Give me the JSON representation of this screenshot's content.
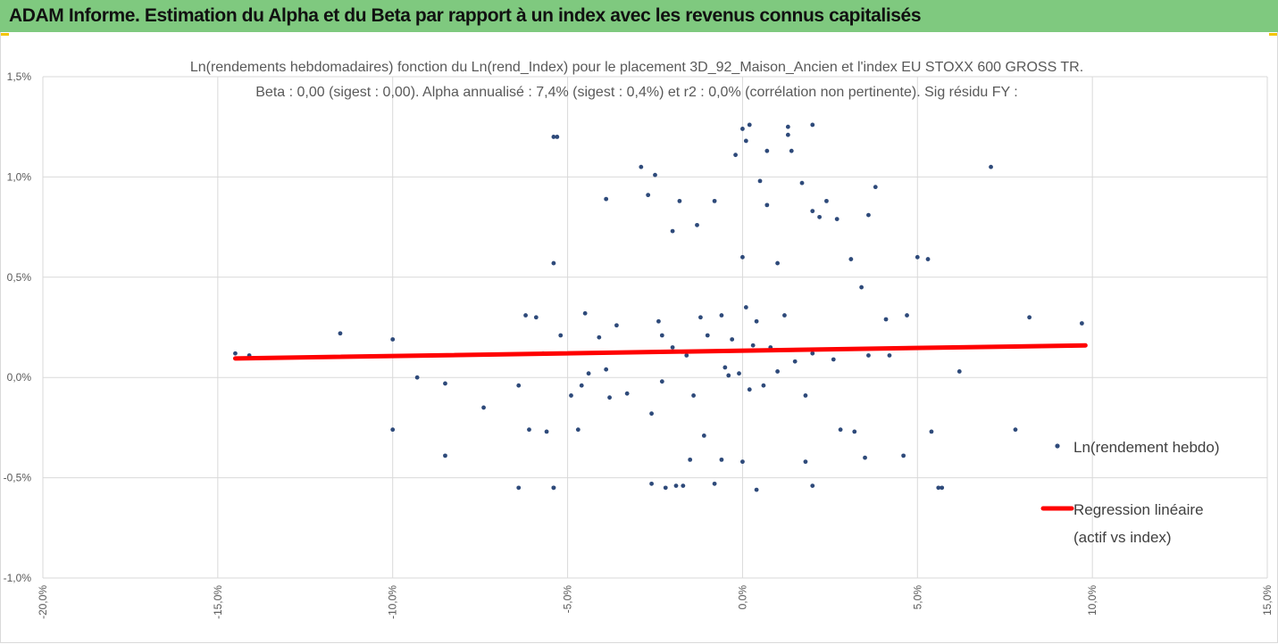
{
  "header": {
    "title": "ADAM Informe. Estimation du Alpha et du Beta par rapport à un index avec les revenus connus capitalisés"
  },
  "colors": {
    "banner": "#7fc97f",
    "points": "#2e4a7a",
    "regression": "#ff0000",
    "grid": "#d9d9d9"
  },
  "chart_data": {
    "type": "scatter",
    "title": [
      "Ln(rendements hebdomadaires) fonction du Ln(rend_Index) pour le placement 3D_92_Maison_Ancien et l'index EU STOXX 600 GROSS TR.",
      "Beta : 0,00 (sigest : 0,00). Alpha annualisé : 7,4% (sigest : 0,4%) et r2 : 0,0% (corrélation non pertinente). Sig résidu FY :"
    ],
    "xlim": [
      -0.2,
      0.15
    ],
    "ylim": [
      -0.01,
      0.015
    ],
    "grid": true,
    "x_ticks": [
      -0.2,
      -0.15,
      -0.1,
      -0.05,
      0.0,
      0.05,
      0.1,
      0.15
    ],
    "x_tick_labels": [
      "-20,0%",
      "-15,0%",
      "-10,0%",
      "-5,0%",
      "0,0%",
      "5,0%",
      "10,0%",
      "15,0%"
    ],
    "y_ticks": [
      -0.01,
      -0.005,
      0.0,
      0.005,
      0.01,
      0.015
    ],
    "y_tick_labels": [
      "-1,0%",
      "-0,5%",
      "0,0%",
      "0,5%",
      "1,0%",
      "1,5%"
    ],
    "legend_position": "right",
    "series": [
      {
        "name": "Ln(rendement hebdo)",
        "kind": "points",
        "x": [
          -0.145,
          -0.141,
          -0.115,
          -0.1,
          -0.1,
          -0.093,
          -0.085,
          -0.085,
          -0.074,
          -0.064,
          -0.062,
          -0.061,
          -0.059,
          -0.057,
          -0.056,
          -0.054,
          -0.054,
          -0.053,
          -0.052,
          -0.049,
          -0.047,
          -0.046,
          -0.045,
          -0.044,
          -0.041,
          -0.039,
          -0.038,
          -0.036,
          -0.033,
          -0.029,
          -0.027,
          -0.026,
          -0.025,
          -0.024,
          -0.023,
          -0.022,
          -0.02,
          -0.019,
          -0.018,
          -0.016,
          -0.014,
          -0.012,
          -0.011,
          -0.01,
          -0.008,
          -0.006,
          -0.005,
          -0.004,
          -0.003,
          -0.002,
          -0.001,
          0.0,
          0.001,
          0.002,
          0.003,
          0.004,
          0.005,
          0.006,
          0.007,
          0.008,
          0.01,
          0.012,
          0.013,
          0.015,
          0.017,
          0.018,
          0.02,
          0.022,
          0.024,
          0.026,
          0.028,
          0.031,
          0.034,
          0.035,
          0.036,
          0.038,
          0.041,
          0.046,
          0.047,
          0.05,
          0.053,
          0.054,
          0.057,
          0.062,
          0.071,
          0.078,
          0.082,
          0.097,
          -0.054,
          -0.017,
          -0.008,
          0.0,
          0.001,
          0.002,
          0.007,
          0.013,
          0.014,
          0.02,
          0.02,
          0.042,
          -0.064,
          -0.054,
          -0.02,
          -0.013,
          0.0,
          0.01,
          0.02,
          0.027,
          0.056,
          -0.026,
          -0.015,
          -0.006,
          0.004,
          0.018,
          0.032,
          -0.039,
          -0.023,
          0.036
        ],
        "y": [
          0.0012,
          0.0011,
          0.0022,
          0.0019,
          -0.0026,
          0.0,
          -0.0003,
          -0.0039,
          -0.0015,
          -0.0004,
          0.0031,
          -0.0026,
          0.003,
          0.0012,
          -0.0027,
          0.0057,
          -0.0055,
          0.012,
          0.0021,
          -0.0009,
          -0.0026,
          -0.0004,
          0.0032,
          0.0002,
          0.002,
          0.0089,
          -0.001,
          0.0026,
          -0.0008,
          0.0105,
          0.0091,
          -0.0018,
          0.0101,
          0.0028,
          -0.0002,
          -0.0055,
          0.0015,
          -0.0054,
          0.0088,
          0.0011,
          -0.0009,
          0.003,
          -0.0029,
          0.0021,
          0.0088,
          0.0031,
          0.0005,
          0.0001,
          0.0019,
          0.0111,
          0.0002,
          0.0124,
          0.0035,
          -0.0006,
          0.0016,
          0.0028,
          0.0098,
          -0.0004,
          0.0086,
          0.0015,
          0.0003,
          0.0031,
          0.0125,
          0.0008,
          0.0097,
          -0.0009,
          0.0012,
          0.008,
          0.0088,
          0.0009,
          -0.0026,
          0.0059,
          0.0045,
          -0.004,
          0.0081,
          0.0095,
          0.0029,
          -0.0039,
          0.0031,
          0.006,
          0.0059,
          -0.0027,
          -0.0055,
          0.0003,
          0.0105,
          -0.0026,
          0.003,
          0.0027,
          -0.0055,
          -0.0054,
          -0.0053,
          -0.0042,
          0.0118,
          0.0126,
          0.0113,
          0.0121,
          0.0113,
          0.0126,
          -0.0054,
          0.0011,
          -0.0055,
          0.012,
          0.0073,
          0.0076,
          0.006,
          0.0057,
          0.0083,
          0.0079,
          -0.0055,
          -0.0053,
          -0.0041,
          -0.0041,
          -0.0056,
          -0.0042,
          -0.0027,
          0.0004,
          0.0021,
          0.0011
        ]
      },
      {
        "name": "Regression linéaire (actif vs index)",
        "name_lines": [
          "Regression linéaire",
          "(actif vs index)"
        ],
        "kind": "line",
        "x": [
          -0.145,
          0.098
        ],
        "y": [
          0.00095,
          0.0016
        ]
      }
    ]
  }
}
